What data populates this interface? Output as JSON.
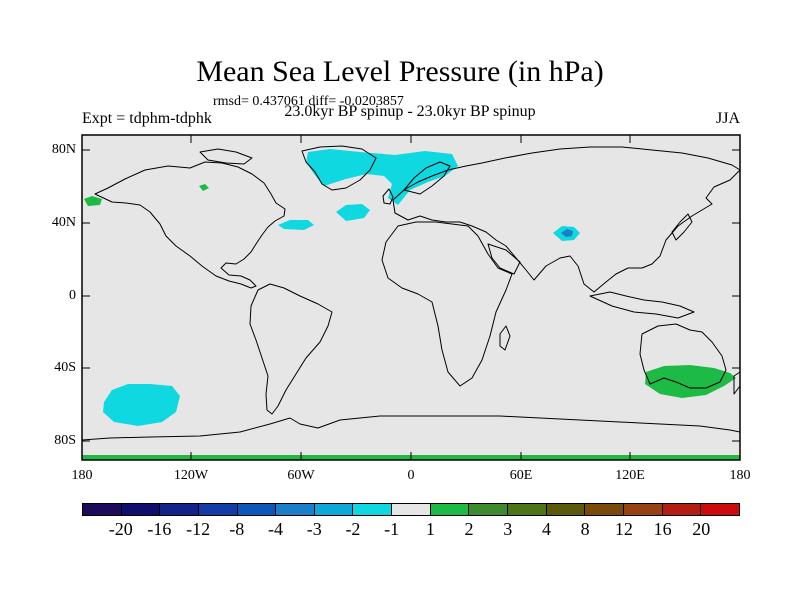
{
  "title": "Mean Sea Level Pressure (in hPa)",
  "stats": "rmsd= 0.437061 diff= -0.0203857",
  "subtitle": "23.0kyr BP spinup - 23.0kyr BP spinup",
  "expt": "Expt = tdphm-tdphk",
  "season": "JJA",
  "yticks": [
    "80N",
    "40N",
    "0",
    "40S",
    "80S"
  ],
  "xticks": [
    "180",
    "120W",
    "60W",
    "0",
    "60E",
    "120E",
    "180"
  ],
  "colorbar": {
    "colors": [
      "#1e0a5a",
      "#0e0e6e",
      "#12238c",
      "#123ca6",
      "#0c58b8",
      "#1a7ec8",
      "#0ea8d8",
      "#10d8e0",
      "#e6e6e6",
      "#1eba46",
      "#3c8c2e",
      "#4e7418",
      "#5a5a0a",
      "#7a4a0a",
      "#964214",
      "#b41e12",
      "#cc0c0c"
    ],
    "labels": [
      "-20",
      "-16",
      "-12",
      "-8",
      "-4",
      "-3",
      "-2",
      "-1",
      "1",
      "2",
      "3",
      "4",
      "8",
      "12",
      "16",
      "20"
    ]
  }
}
